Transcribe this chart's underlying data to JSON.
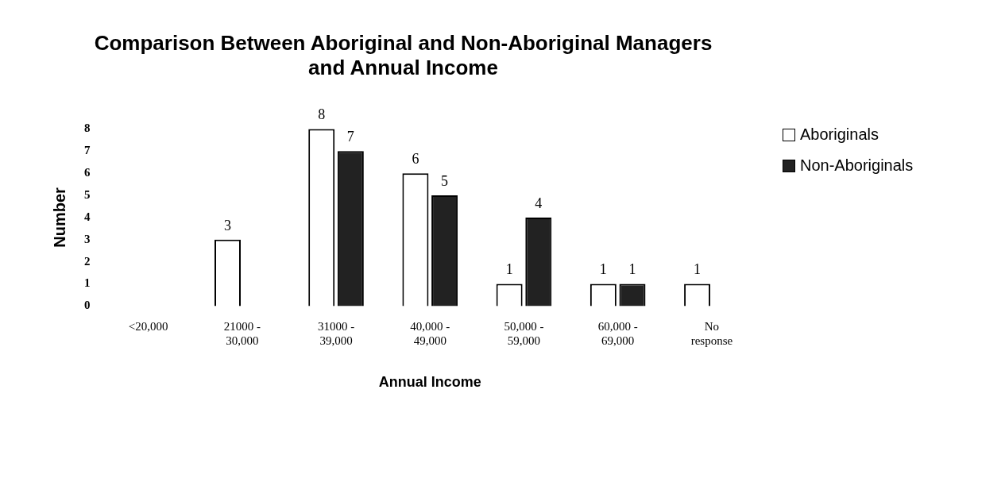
{
  "chart_data": {
    "type": "bar",
    "title": "Comparison Between Aboriginal and Non-Aboriginal Managers\nand Annual Income",
    "xlabel": "Annual Income",
    "ylabel": "Number",
    "categories": [
      "<20,000",
      "21000 -\n30,000",
      "31000 -\n39,000",
      "40,000 -\n49,000",
      "50,000 -\n59,000",
      "60,000 -\n69,000",
      "No\nresponse"
    ],
    "series": [
      {
        "name": "Aboriginals",
        "color": "#ffffff",
        "values": [
          null,
          3,
          8,
          6,
          1,
          1,
          1
        ]
      },
      {
        "name": "Non-Aboriginals",
        "color": "#222222",
        "values": [
          null,
          null,
          7,
          5,
          4,
          1,
          null
        ]
      }
    ],
    "ylim": [
      0,
      8
    ],
    "yticks": [
      0,
      1,
      2,
      3,
      4,
      5,
      6,
      7,
      8
    ],
    "grid": false,
    "legend": "top right",
    "data_labels": true
  }
}
